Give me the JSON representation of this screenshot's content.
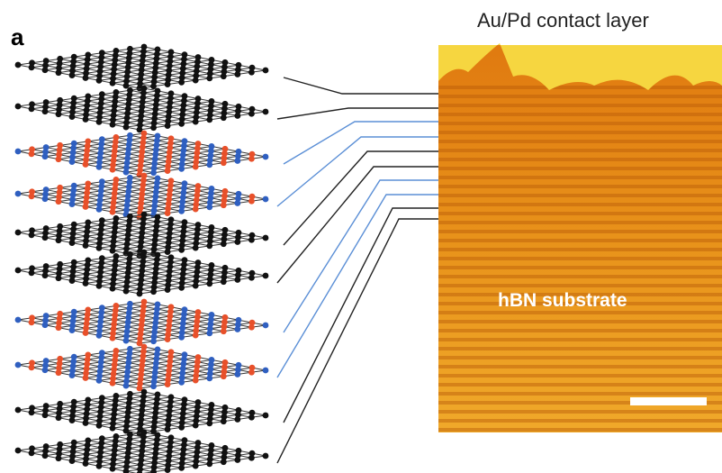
{
  "panel_label": "a",
  "top_label": "Au/Pd contact layer",
  "substrate_label": "hBN substrate"
}
